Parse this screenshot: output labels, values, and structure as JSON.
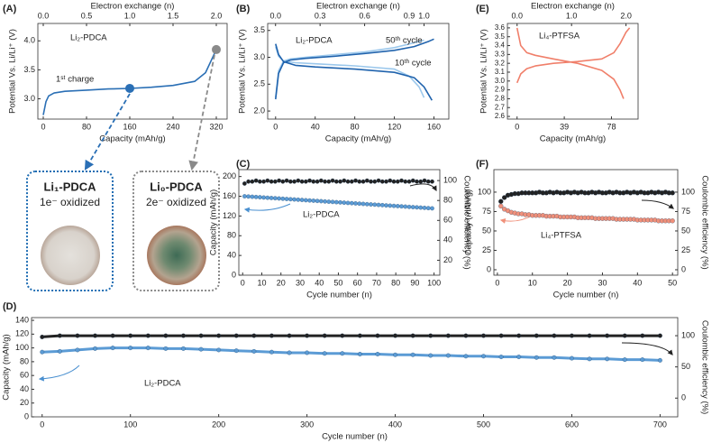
{
  "chart_data": [
    {
      "type": "line",
      "title": "(A)",
      "xlabel": "Capacity (mAh/g)",
      "ylabel": "Potential Vs. Li/Li⁺ (V)",
      "x2label": "Electron exchange (n)",
      "xlim": [
        -10,
        340
      ],
      "xticks": [
        0,
        80,
        160,
        240,
        320
      ],
      "x2lim": [
        -0.0625,
        2.125
      ],
      "x2ticks": [
        {
          "value": 0,
          "label": "0.0"
        },
        0.5,
        {
          "value": 1,
          "label": "1.0"
        },
        1.5,
        {
          "value": 2,
          "label": "2.0"
        }
      ],
      "ylim": [
        2.65,
        4.3
      ],
      "yticks": [
        {
          "value": 3,
          "label": "3.0"
        },
        3.5,
        {
          "value": 4,
          "label": "4.0"
        }
      ],
      "series": [
        {
          "color": "#2a6fb5",
          "x": [
            0,
            5,
            10,
            20,
            40,
            80,
            120,
            160,
            200,
            240,
            280,
            300,
            310,
            320,
            325
          ],
          "values": [
            2.72,
            2.95,
            3.05,
            3.1,
            3.13,
            3.15,
            3.17,
            3.18,
            3.2,
            3.23,
            3.3,
            3.45,
            3.65,
            3.85,
            3.88
          ]
        }
      ],
      "markers": [
        {
          "x": 160,
          "y": 3.18,
          "color": "#2a6fb5"
        },
        {
          "x": 320,
          "y": 3.85,
          "color": "#8a8a8a"
        }
      ],
      "annotations": [
        "Li₂-PDCA",
        "1ˢᵗ charge"
      ]
    },
    {
      "type": "line",
      "title": "(B)",
      "xlabel": "Capacity (mAh/g)",
      "ylabel": "Potential Vs. Li/Li⁺ (V)",
      "x2label": "Electron exchange (n)",
      "xlim": [
        -8,
        175
      ],
      "xticks": [
        0,
        40,
        80,
        120,
        160
      ],
      "x2lim": [
        -0.053,
        1.167
      ],
      "x2ticks": [
        {
          "value": 0,
          "label": "0.0"
        },
        0.3,
        0.6,
        0.9,
        {
          "value": 1,
          "label": "1.0"
        }
      ],
      "ylim": [
        1.85,
        3.63
      ],
      "yticks": [
        {
          "value": 2,
          "label": "2.0"
        },
        2.5,
        {
          "value": 3,
          "label": "3.0"
        },
        3.5
      ],
      "series": [
        {
          "name": "50ᵗʰ cycle",
          "color": "#9cc8ec",
          "x": [
            0,
            3,
            8,
            15,
            30,
            60,
            90,
            120,
            140,
            150,
            null,
            0,
            3,
            8,
            20,
            40,
            80,
            120,
            135,
            145,
            150
          ],
          "values": [
            2.25,
            2.75,
            2.93,
            2.97,
            3.0,
            3.05,
            3.1,
            3.18,
            3.27,
            3.32,
            null,
            3.2,
            3.02,
            2.93,
            2.9,
            2.88,
            2.84,
            2.78,
            2.65,
            2.45,
            2.25
          ]
        },
        {
          "name": "10ᵗʰ cycle",
          "color": "#2063ad",
          "x": [
            0,
            3,
            8,
            15,
            30,
            60,
            90,
            120,
            140,
            155,
            160,
            null,
            0,
            3,
            8,
            20,
            40,
            80,
            120,
            140,
            150,
            158
          ],
          "values": [
            2.22,
            2.7,
            2.9,
            2.95,
            2.98,
            3.02,
            3.07,
            3.13,
            3.2,
            3.3,
            3.34,
            null,
            3.25,
            3.05,
            2.92,
            2.85,
            2.82,
            2.78,
            2.72,
            2.62,
            2.45,
            2.2
          ]
        }
      ],
      "annotations": [
        "Li₂-PDCA"
      ]
    },
    {
      "type": "scatter",
      "title": "(C)",
      "xlabel": "Cycle number (n)",
      "ylabel": "Capacity (mAh/g)",
      "y2label": "Coulombic efficiency (%)",
      "xlim": [
        -2,
        103
      ],
      "xticks": [
        0,
        10,
        20,
        30,
        40,
        50,
        60,
        70,
        80,
        90,
        100
      ],
      "ylim": [
        0,
        214
      ],
      "yticks": [
        0,
        40,
        80,
        120,
        160,
        200
      ],
      "y2lim": [
        5,
        111
      ],
      "y2ticks": [
        20,
        40,
        60,
        80,
        100
      ],
      "series": [
        {
          "color": "#5b9bd5",
          "x": [
            1,
            3,
            5,
            7,
            9,
            11,
            13,
            15,
            17,
            19,
            21,
            23,
            25,
            27,
            29,
            31,
            33,
            35,
            37,
            39,
            41,
            43,
            45,
            47,
            49,
            51,
            53,
            55,
            57,
            59,
            61,
            63,
            65,
            67,
            69,
            71,
            73,
            75,
            77,
            79,
            81,
            83,
            85,
            87,
            89,
            91,
            93,
            95,
            97,
            99
          ],
          "values": [
            160,
            159.5,
            159,
            158.5,
            158,
            157.5,
            157,
            156.5,
            156,
            155.5,
            155,
            154.5,
            154,
            153.5,
            153,
            152.5,
            152,
            151.5,
            151,
            150.5,
            150,
            149.5,
            149,
            148.5,
            148,
            147.5,
            147,
            146.5,
            146,
            145.5,
            145,
            144.5,
            144,
            143.5,
            143,
            142.5,
            142,
            141.5,
            141,
            140.5,
            140,
            139.5,
            139,
            138.5,
            138,
            137.5,
            137,
            136.5,
            136,
            135.5
          ]
        },
        {
          "color": "#222222",
          "axis": "y2",
          "x": [
            1,
            3,
            5,
            7,
            9,
            11,
            13,
            15,
            17,
            19,
            21,
            23,
            25,
            27,
            29,
            31,
            33,
            35,
            37,
            39,
            41,
            43,
            45,
            47,
            49,
            51,
            53,
            55,
            57,
            59,
            61,
            63,
            65,
            67,
            69,
            71,
            73,
            75,
            77,
            79,
            81,
            83,
            85,
            87,
            89,
            91,
            93,
            95,
            97,
            99
          ],
          "values": [
            97,
            99,
            99,
            100,
            99,
            99,
            100,
            99,
            99,
            100,
            99,
            100,
            99,
            99,
            100,
            99,
            99,
            100,
            99,
            99,
            100,
            99,
            99,
            100,
            99,
            99,
            100,
            99,
            99,
            100,
            99,
            99,
            100,
            99,
            99,
            100,
            99,
            99,
            100,
            99,
            99,
            100,
            99,
            99,
            100,
            99,
            99,
            100,
            99,
            99
          ]
        }
      ],
      "annotations": [
        "Li₂-PDCA"
      ]
    },
    {
      "type": "scatter",
      "title": "(D)",
      "xlabel": "Cycle number (n)",
      "ylabel": "Capacity (mAh/g)",
      "y2label": "Coulombic efficiency (%)",
      "xlim": [
        -12,
        720
      ],
      "xticks": [
        0,
        100,
        200,
        300,
        400,
        500,
        600,
        700
      ],
      "ylim": [
        0,
        144
      ],
      "yticks": [
        0,
        20,
        40,
        60,
        80,
        100,
        120,
        140
      ],
      "y2lim": [
        -30,
        129
      ],
      "y2ticks": [
        0,
        50,
        100
      ],
      "series": [
        {
          "color": "#5b9bd5",
          "x": [
            0,
            20,
            40,
            60,
            80,
            100,
            120,
            140,
            160,
            180,
            200,
            220,
            240,
            260,
            280,
            300,
            320,
            340,
            360,
            380,
            400,
            420,
            440,
            460,
            480,
            500,
            520,
            540,
            560,
            580,
            600,
            620,
            640,
            660,
            680,
            700
          ],
          "values": [
            94,
            95,
            97,
            99,
            100,
            100,
            100,
            99,
            99,
            98,
            97,
            96,
            95,
            94,
            93,
            93,
            92,
            92,
            91,
            91,
            90,
            90,
            89,
            89,
            88,
            88,
            87,
            87,
            86,
            86,
            85,
            84,
            84,
            83,
            83,
            82
          ]
        },
        {
          "color": "#222222",
          "axis": "y2",
          "x": [
            0,
            20,
            40,
            60,
            80,
            100,
            120,
            140,
            160,
            180,
            200,
            220,
            240,
            260,
            280,
            300,
            320,
            340,
            360,
            380,
            400,
            420,
            440,
            460,
            480,
            500,
            520,
            540,
            560,
            580,
            600,
            620,
            640,
            660,
            680,
            700
          ],
          "values": [
            98,
            100,
            100,
            100,
            100,
            100,
            100,
            100,
            100,
            100,
            100,
            100,
            100,
            100,
            100,
            100,
            100,
            100,
            100,
            100,
            100,
            100,
            100,
            100,
            100,
            100,
            100,
            100,
            100,
            100,
            100,
            100,
            100,
            100,
            100,
            100
          ]
        }
      ],
      "annotations": [
        "Li₂-PDCA"
      ]
    },
    {
      "type": "line",
      "title": "(E)",
      "xlabel": "Capacity (mAh/g)",
      "ylabel": "Potential Vs. Li/Li⁺ (V)",
      "x2label": "Electron exchange (n)",
      "xlim": [
        -8,
        100
      ],
      "xticks": [
        0,
        39,
        78
      ],
      "x2lim": [
        -0.178,
        2.222
      ],
      "x2ticks": [
        {
          "value": 0,
          "label": "0.0"
        },
        {
          "value": 1,
          "label": "1.0"
        },
        {
          "value": 2,
          "label": "2.0"
        }
      ],
      "ylim": [
        2.57,
        3.65
      ],
      "yticks": [
        2.6,
        2.7,
        2.8,
        2.9,
        {
          "value": 3,
          "label": "3.0"
        },
        3.1,
        3.2,
        3.3,
        3.4,
        3.5,
        3.6
      ],
      "series": [
        {
          "color": "#f07f6a",
          "x": [
            0,
            3,
            8,
            15,
            30,
            50,
            70,
            80,
            85,
            90,
            93,
            null,
            0,
            3,
            8,
            15,
            30,
            50,
            70,
            80,
            85,
            88
          ],
          "values": [
            2.98,
            3.08,
            3.14,
            3.17,
            3.2,
            3.22,
            3.25,
            3.32,
            3.42,
            3.55,
            3.6,
            null,
            3.6,
            3.4,
            3.32,
            3.29,
            3.25,
            3.2,
            3.12,
            3.02,
            2.9,
            2.8
          ]
        }
      ],
      "annotations": [
        "Li₄-PTFSA"
      ]
    },
    {
      "type": "scatter",
      "title": "(F)",
      "xlabel": "Cycle number (n)",
      "ylabel": "Capacity (mAh/g)",
      "y2label": "Coulombic efficiency (%)",
      "xlim": [
        -1,
        51.5
      ],
      "xticks": [
        0,
        10,
        20,
        30,
        40,
        50
      ],
      "ylim": [
        -7,
        129
      ],
      "yticks": [
        0,
        25,
        50,
        75,
        100
      ],
      "y2lim": [
        -7,
        129
      ],
      "y2ticks": [
        0,
        25,
        50,
        75,
        100
      ],
      "series": [
        {
          "color": "#f0907a",
          "x": [
            1,
            2,
            3,
            4,
            5,
            6,
            7,
            8,
            9,
            10,
            11,
            12,
            13,
            14,
            15,
            16,
            17,
            18,
            19,
            20,
            21,
            22,
            23,
            24,
            25,
            26,
            27,
            28,
            29,
            30,
            31,
            32,
            33,
            34,
            35,
            36,
            37,
            38,
            39,
            40,
            41,
            42,
            43,
            44,
            45,
            46,
            47,
            48,
            49,
            50
          ],
          "values": [
            82,
            78,
            76,
            74,
            73,
            72,
            72,
            71,
            71,
            70,
            70,
            70,
            70,
            69,
            69,
            69,
            69,
            68,
            68,
            68,
            68,
            68,
            67,
            67,
            67,
            67,
            67,
            66,
            66,
            66,
            66,
            66,
            66,
            65,
            65,
            65,
            65,
            65,
            65,
            64,
            64,
            64,
            64,
            64,
            64,
            63,
            63,
            63,
            63,
            63
          ]
        },
        {
          "color": "#222222",
          "axis": "y2",
          "x": [
            1,
            2,
            3,
            4,
            5,
            6,
            7,
            8,
            9,
            10,
            11,
            12,
            13,
            14,
            15,
            16,
            17,
            18,
            19,
            20,
            21,
            22,
            23,
            24,
            25,
            26,
            27,
            28,
            29,
            30,
            31,
            32,
            33,
            34,
            35,
            36,
            37,
            38,
            39,
            40,
            41,
            42,
            43,
            44,
            45,
            46,
            47,
            48,
            49,
            50
          ],
          "values": [
            88,
            93,
            96,
            97,
            98,
            98,
            99,
            99,
            99,
            99,
            99,
            100,
            99,
            99,
            100,
            99,
            100,
            99,
            99,
            100,
            99,
            100,
            99,
            100,
            99,
            99,
            100,
            99,
            100,
            99,
            99,
            100,
            99,
            100,
            99,
            99,
            100,
            99,
            100,
            99,
            100,
            99,
            99,
            100,
            99,
            100,
            99,
            100,
            99,
            99
          ]
        }
      ],
      "annotations": [
        "Li₄-PTFSA"
      ]
    }
  ],
  "photos": [
    {
      "title": "Li₁-PDCA",
      "subtitle": "1e⁻ oxidized",
      "color": "#1f6db3"
    },
    {
      "title": "Li₀-PDCA",
      "subtitle": "2e⁻ oxidized",
      "color": "#8a8a8a"
    }
  ]
}
